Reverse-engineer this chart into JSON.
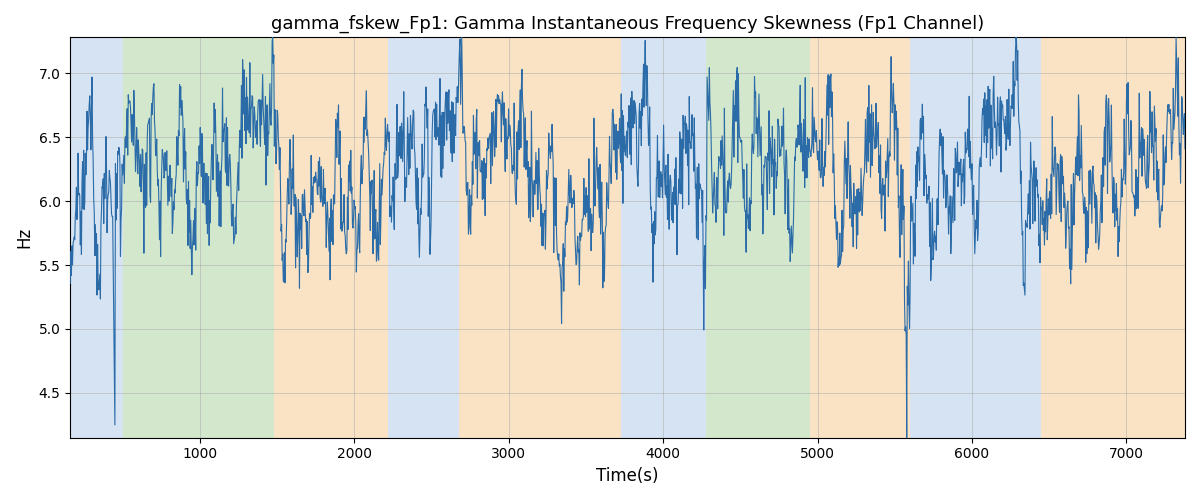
{
  "title": "gamma_fskew_Fp1: Gamma Instantaneous Frequency Skewness (Fp1 Channel)",
  "xlabel": "Time(s)",
  "ylabel": "Hz",
  "xlim": [
    160,
    7380
  ],
  "ylim": [
    4.15,
    7.28
  ],
  "line_color": "#2b6ca8",
  "line_width": 0.8,
  "bg_regions": [
    {
      "xstart": 160,
      "xend": 500,
      "color": "#adc9e8",
      "alpha": 0.5
    },
    {
      "xstart": 500,
      "xend": 1480,
      "color": "#a8d09a",
      "alpha": 0.5
    },
    {
      "xstart": 1480,
      "xend": 2220,
      "color": "#f5c98a",
      "alpha": 0.5
    },
    {
      "xstart": 2220,
      "xend": 2680,
      "color": "#adc9e8",
      "alpha": 0.5
    },
    {
      "xstart": 2680,
      "xend": 3730,
      "color": "#f5c98a",
      "alpha": 0.5
    },
    {
      "xstart": 3730,
      "xend": 4130,
      "color": "#adc9e8",
      "alpha": 0.5
    },
    {
      "xstart": 4130,
      "xend": 4280,
      "color": "#adc9e8",
      "alpha": 0.5
    },
    {
      "xstart": 4280,
      "xend": 4950,
      "color": "#a8d09a",
      "alpha": 0.5
    },
    {
      "xstart": 4950,
      "xend": 5600,
      "color": "#f5c98a",
      "alpha": 0.5
    },
    {
      "xstart": 5600,
      "xend": 6450,
      "color": "#adc9e8",
      "alpha": 0.5
    },
    {
      "xstart": 6450,
      "xend": 7380,
      "color": "#f5c98a",
      "alpha": 0.5
    }
  ],
  "yticks": [
    4.5,
    5.0,
    5.5,
    6.0,
    6.5,
    7.0
  ],
  "xticks": [
    1000,
    2000,
    3000,
    4000,
    5000,
    6000,
    7000
  ],
  "grid_color": "#aaaaaa",
  "grid_alpha": 0.6,
  "title_fontsize": 13,
  "label_fontsize": 12,
  "tick_fontsize": 10
}
